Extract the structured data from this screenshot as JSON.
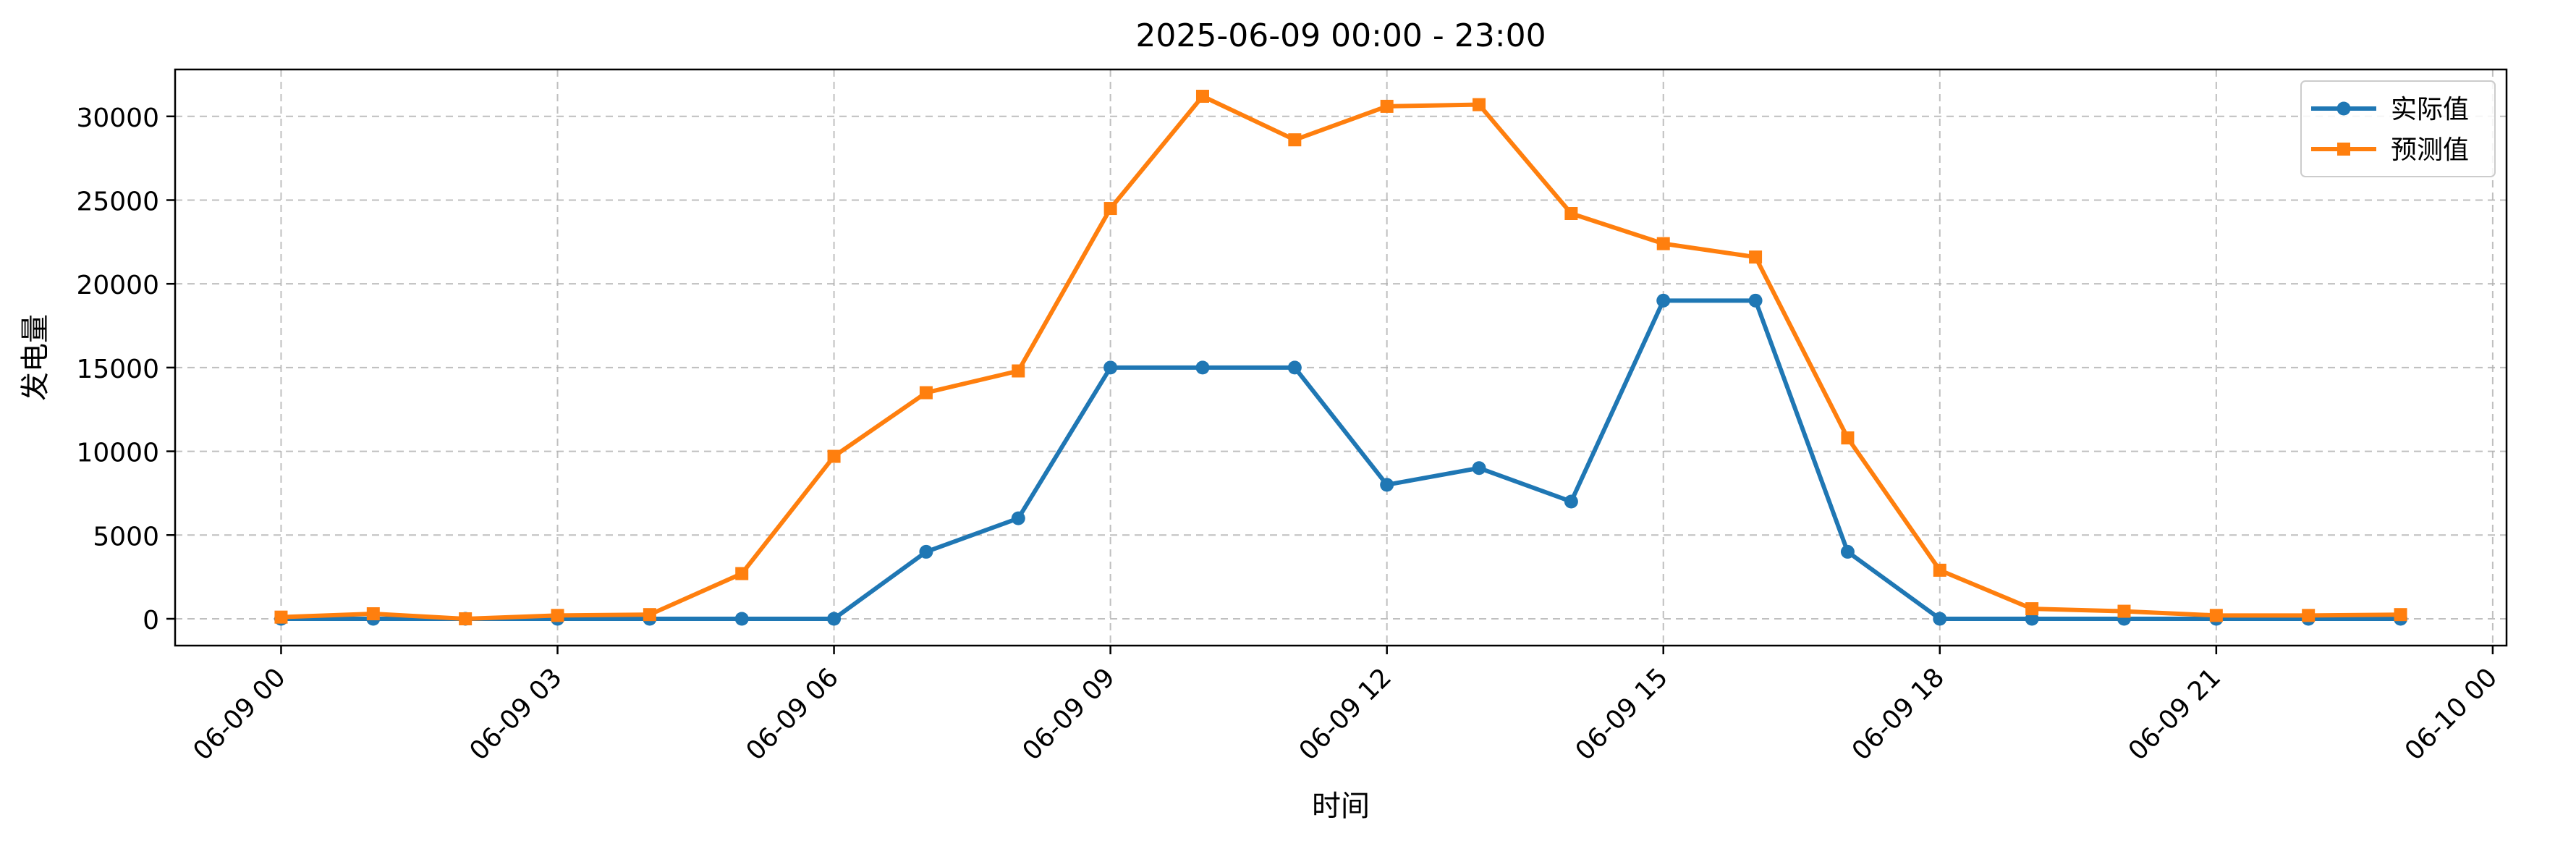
{
  "chart_data": {
    "type": "line",
    "title": "2025-06-09 00:00 - 23:00",
    "xlabel": "时间",
    "ylabel": "发电量",
    "x": [
      "06-09 00",
      "06-09 01",
      "06-09 02",
      "06-09 03",
      "06-09 04",
      "06-09 05",
      "06-09 06",
      "06-09 07",
      "06-09 08",
      "06-09 09",
      "06-09 10",
      "06-09 11",
      "06-09 12",
      "06-09 13",
      "06-09 14",
      "06-09 15",
      "06-09 16",
      "06-09 17",
      "06-09 18",
      "06-09 19",
      "06-09 20",
      "06-09 21",
      "06-09 22",
      "06-09 23"
    ],
    "x_ticks": [
      "06-09 00",
      "06-09 03",
      "06-09 06",
      "06-09 09",
      "06-09 12",
      "06-09 15",
      "06-09 18",
      "06-09 21",
      "06-10 00"
    ],
    "xlim_hours": [
      -1.15,
      24.15
    ],
    "y_ticks": [
      0,
      5000,
      10000,
      15000,
      20000,
      25000,
      30000
    ],
    "ylim": [
      -1600,
      32800
    ],
    "grid": true,
    "legend_position": "top-right",
    "series": [
      {
        "name": "实际值",
        "color": "#1f77b4",
        "marker": "circle",
        "values": [
          0,
          0,
          0,
          0,
          0,
          0,
          0,
          4000,
          6000,
          15000,
          15000,
          15000,
          8000,
          9000,
          7000,
          19000,
          19000,
          4000,
          0,
          0,
          0,
          0,
          0,
          0
        ]
      },
      {
        "name": "预测值",
        "color": "#ff7f0e",
        "marker": "square",
        "values": [
          100,
          300,
          0,
          200,
          250,
          2700,
          9700,
          13500,
          14800,
          24500,
          31200,
          28600,
          30600,
          30700,
          24200,
          22400,
          21600,
          10800,
          2900,
          600,
          450,
          200,
          200,
          250
        ]
      }
    ]
  }
}
